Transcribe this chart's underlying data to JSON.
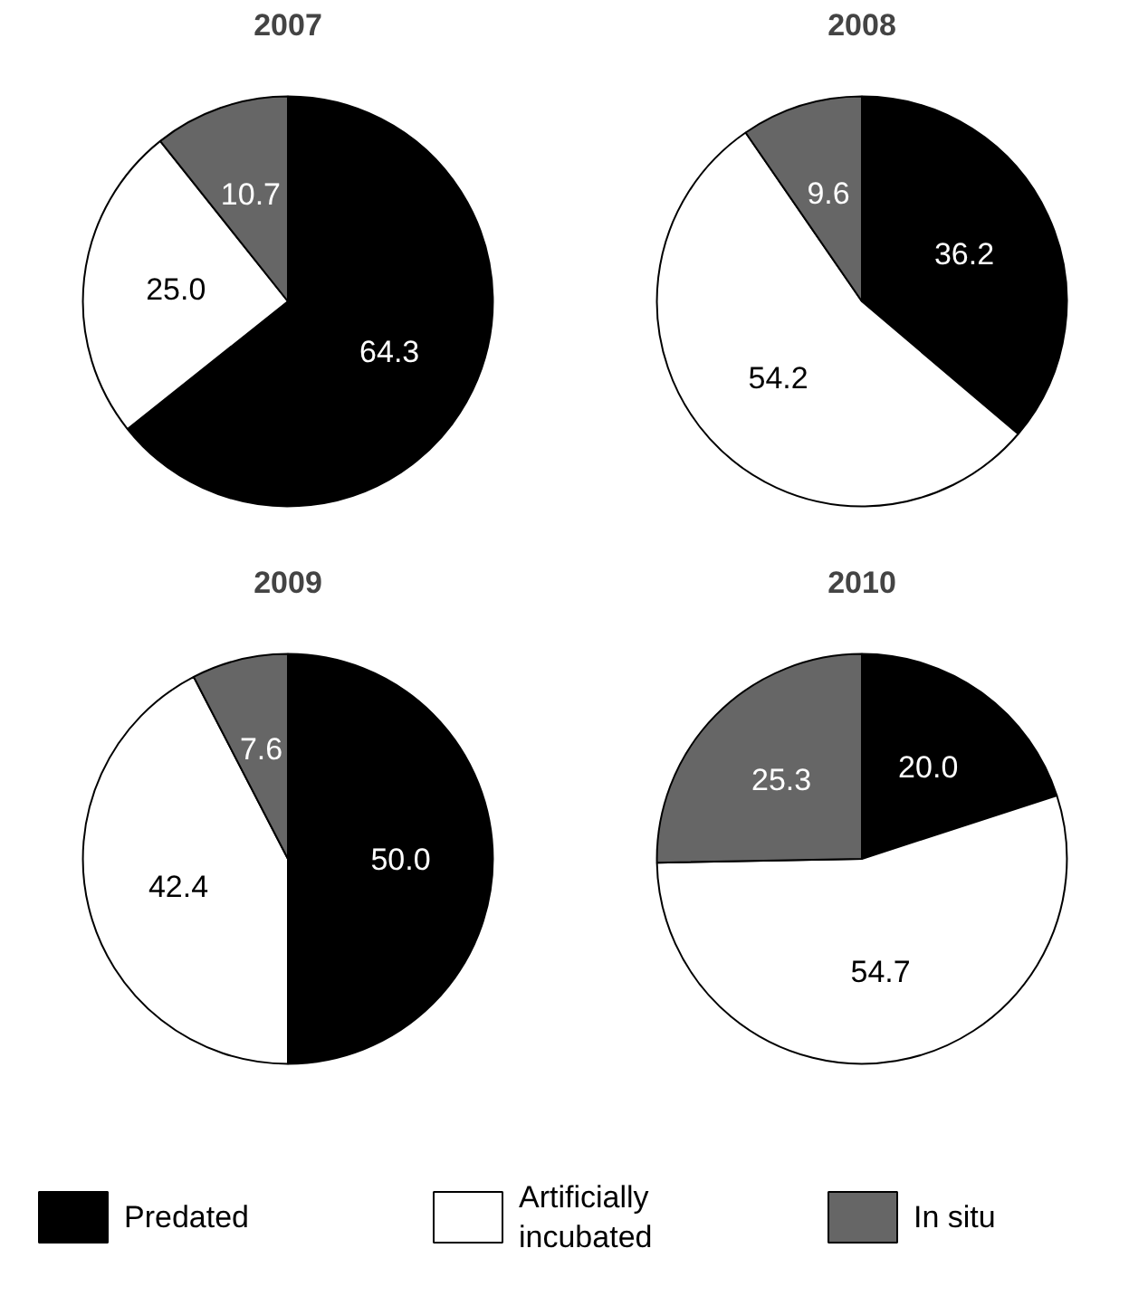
{
  "chart_data": [
    {
      "type": "pie",
      "title": "2007",
      "categories": [
        "Predated",
        "Artificially incubated",
        "In situ"
      ],
      "values": [
        64.3,
        25.0,
        10.7
      ],
      "value_labels": [
        "64.3",
        "25.0",
        "10.7"
      ],
      "colors": [
        "#000000",
        "#ffffff",
        "#666666"
      ],
      "legend": "bottom"
    },
    {
      "type": "pie",
      "title": "2008",
      "values": [
        36.2,
        54.2,
        9.6
      ],
      "value_labels": [
        "36.2",
        "54.2",
        "9.6"
      ],
      "colors": [
        "#000000",
        "#ffffff",
        "#666666"
      ]
    },
    {
      "type": "pie",
      "title": "2009",
      "values": [
        50.0,
        42.4,
        7.6
      ],
      "value_labels": [
        "50.0",
        "42.4",
        "7.6"
      ],
      "colors": [
        "#000000",
        "#ffffff",
        "#666666"
      ]
    },
    {
      "type": "pie",
      "title": "2010",
      "values": [
        20.0,
        54.7,
        25.3
      ],
      "value_labels": [
        "20.0",
        "54.7",
        "25.3"
      ],
      "colors": [
        "#000000",
        "#ffffff",
        "#666666"
      ]
    }
  ]
}
